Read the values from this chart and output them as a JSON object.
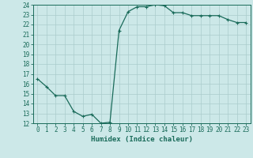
{
  "x": [
    0,
    1,
    2,
    3,
    4,
    5,
    6,
    7,
    8,
    9,
    10,
    11,
    12,
    13,
    14,
    15,
    16,
    17,
    18,
    19,
    20,
    21,
    22,
    23
  ],
  "y": [
    16.5,
    15.7,
    14.8,
    14.8,
    13.2,
    12.7,
    12.9,
    12.0,
    12.1,
    21.4,
    23.3,
    23.8,
    23.8,
    24.0,
    23.9,
    23.2,
    23.2,
    22.9,
    22.9,
    22.9,
    22.9,
    22.5,
    22.2,
    22.2
  ],
  "xlabel": "Humidex (Indice chaleur)",
  "ylim": [
    12,
    24
  ],
  "xlim": [
    -0.5,
    23.5
  ],
  "yticks": [
    12,
    13,
    14,
    15,
    16,
    17,
    18,
    19,
    20,
    21,
    22,
    23,
    24
  ],
  "xticks": [
    0,
    1,
    2,
    3,
    4,
    5,
    6,
    7,
    8,
    9,
    10,
    11,
    12,
    13,
    14,
    15,
    16,
    17,
    18,
    19,
    20,
    21,
    22,
    23
  ],
  "line_color": "#1a6b5a",
  "marker": "+",
  "marker_size": 3,
  "marker_lw": 0.8,
  "bg_color": "#cce8e8",
  "grid_color": "#aacccc",
  "tick_color": "#1a6b5a",
  "label_color": "#1a6b5a",
  "tick_fontsize": 5.5,
  "xlabel_fontsize": 6.5,
  "line_width": 0.9
}
